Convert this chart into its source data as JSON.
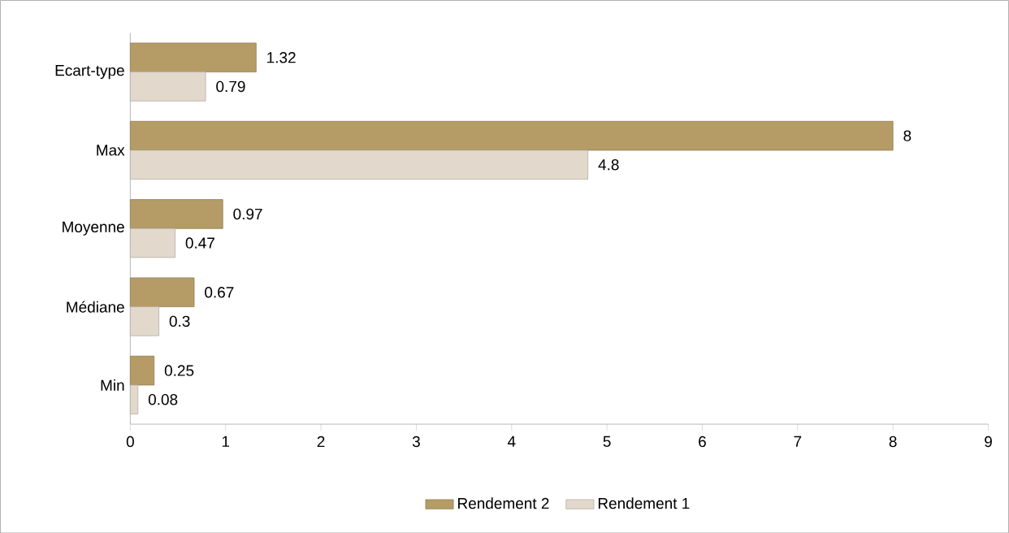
{
  "chart_data": {
    "type": "bar",
    "orientation": "horizontal",
    "categories": [
      "Ecart-type",
      "Max",
      "Moyenne",
      "Médiane",
      "Min"
    ],
    "series": [
      {
        "name": "Rendement 2",
        "color": "#b59c66",
        "values": [
          1.32,
          8,
          0.97,
          0.67,
          0.25
        ]
      },
      {
        "name": "Rendement 1",
        "color": "#e2d9cc",
        "values": [
          0.79,
          4.8,
          0.47,
          0.3,
          0.08
        ]
      }
    ],
    "xlim": [
      0,
      9
    ],
    "xticks": [
      0,
      1,
      2,
      3,
      4,
      5,
      6,
      7,
      8,
      9
    ],
    "data_labels": true,
    "legend": "bottom",
    "grid": false
  }
}
